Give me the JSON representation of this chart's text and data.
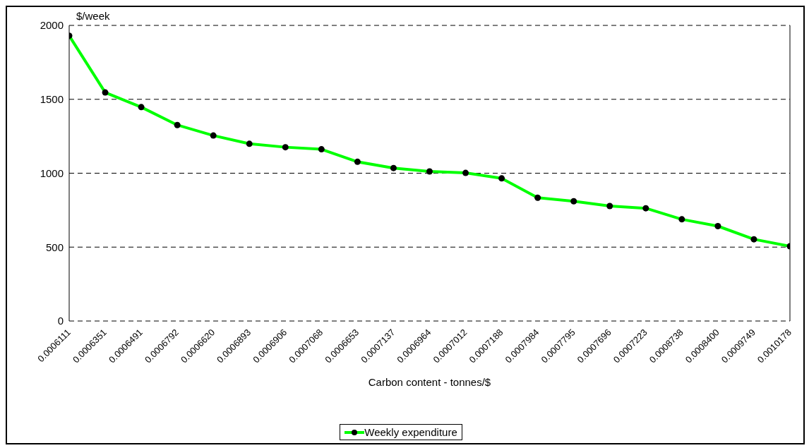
{
  "chart_data": {
    "type": "line",
    "xlabel": "Carbon content - tonnes/$",
    "ylabel": "$/week",
    "categories": [
      "0.0006111",
      "0.0006351",
      "0.0006491",
      "0.0006792",
      "0.0006620",
      "0.0006893",
      "0.0006906",
      "0.0007068",
      "0.0006653",
      "0.0007137",
      "0.0006964",
      "0.0007012",
      "0.0007188",
      "0.0007984",
      "0.0007795",
      "0.0007696",
      "0.0007223",
      "0.0008738",
      "0.0008400",
      "0.0009749",
      "0.0010178"
    ],
    "series": [
      {
        "name": "Weekly expenditure",
        "color": "#00ff00",
        "values": [
          1930,
          1546,
          1447,
          1326,
          1255,
          1199,
          1176,
          1162,
          1077,
          1035,
          1012,
          1002,
          965,
          834,
          810,
          778,
          763,
          688,
          642,
          553,
          506
        ]
      }
    ],
    "ylim": [
      0,
      2000
    ],
    "yticks": [
      0,
      500,
      1000,
      1500,
      2000
    ],
    "grid": "y",
    "legend": "bottom",
    "marker": "circle",
    "line_style": "solid"
  }
}
